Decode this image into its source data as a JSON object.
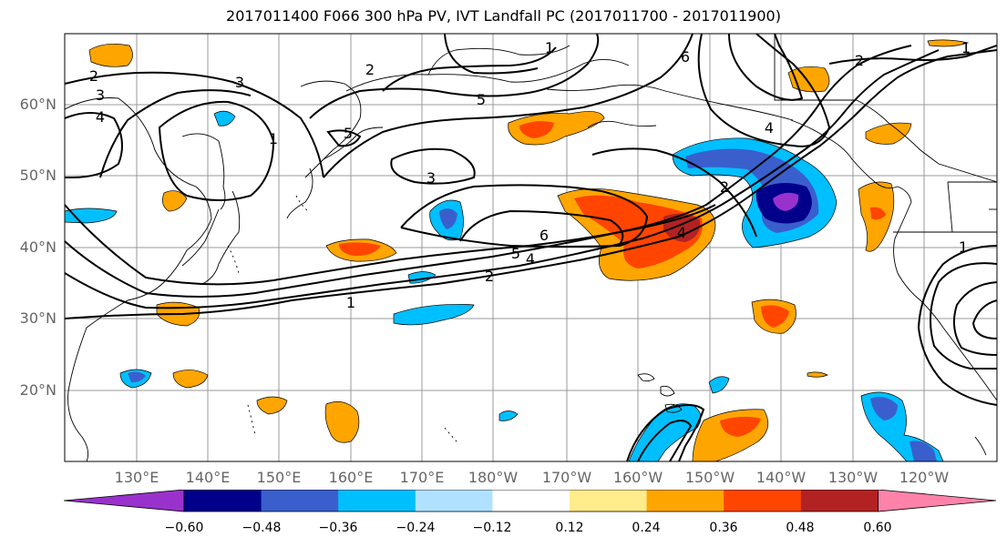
{
  "title": "2017011400 F066 300 hPa PV, IVT Landfall PC (2017011700 - 2017011900)",
  "latitude_labels": [
    "60°N",
    "50°N",
    "40°N",
    "30°N",
    "20°N"
  ],
  "longitude_labels": [
    "130°E",
    "140°E",
    "150°E",
    "160°E",
    "170°E",
    "180°W",
    "170°W",
    "160°W",
    "150°W",
    "140°W",
    "130°W",
    "120°W"
  ],
  "contour_labels": [
    "1",
    "1",
    "1",
    "1",
    "1",
    "2",
    "2",
    "2",
    "2",
    "2",
    "3",
    "3",
    "3",
    "4",
    "4",
    "4",
    "4",
    "5",
    "5",
    "5",
    "6",
    "6"
  ],
  "colorbar": {
    "tick_labels": [
      "−0.60",
      "−0.48",
      "−0.36",
      "−0.24",
      "−0.12",
      "0.12",
      "0.24",
      "0.36",
      "0.48",
      "0.60"
    ],
    "colors": [
      "#9932cc",
      "#00008b",
      "#3a5fcd",
      "#00bfff",
      "#b0e2ff",
      "#ffffff",
      "#ffec8b",
      "#ffa500",
      "#ff4500",
      "#b22222",
      "#ff82ab"
    ]
  }
}
